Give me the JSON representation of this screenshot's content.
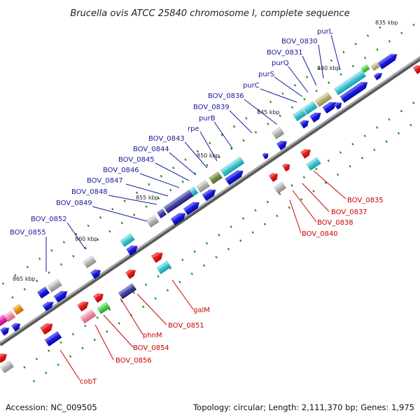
{
  "title": "Brucella ovis ATCC 25840 chromosome I, complete sequence",
  "accession_text": "Accession: NC_009505",
  "summary_text": "Topology: circular; Length: 2,111,370 bp; Genes: 1,975",
  "kbp_markers": [
    "835 kbp",
    "840 kbp",
    "845 kbp",
    "850 kbp",
    "855 kbp",
    "860 kbp",
    "865 kbp"
  ],
  "top_labels": [
    "purL",
    "BOV_0830",
    "BOV_0831",
    "purQ",
    "purS",
    "purC",
    "BOV_0836",
    "BOV_0839",
    "purB",
    "rpe",
    "BOV_0843",
    "BOV_0844",
    "BOV_0845",
    "BOV_0846",
    "BOV_0847",
    "BOV_0848",
    "BOV_0849",
    "BOV_0852",
    "BOV_0855"
  ],
  "bottom_labels": [
    "BOV_0835",
    "BOV_0837",
    "BOV_0838",
    "BOV_0840",
    "galM",
    "BOV_0851",
    "phnM",
    "BOV_0854",
    "BOV_0856",
    "cobT"
  ],
  "colors": {
    "plus_strand": "#0b0bd6",
    "minus_strand": "#ee0000",
    "cyan_gene": "#22bccc",
    "grey_gene": "#aaaaaa",
    "navy_gene": "#2a2a88",
    "olive_gene": "#6b8e23",
    "tan_gene": "#b9ad72",
    "pink_gene": "#ff69b4",
    "magenta_gene": "#ee11aa",
    "orange_gene": "#f08c00",
    "green_gene": "#33cc33",
    "backbone": "#888888",
    "tick": "#1a8a1a",
    "top_line": "#1a1a99",
    "bottom_line": "#cc0000"
  }
}
